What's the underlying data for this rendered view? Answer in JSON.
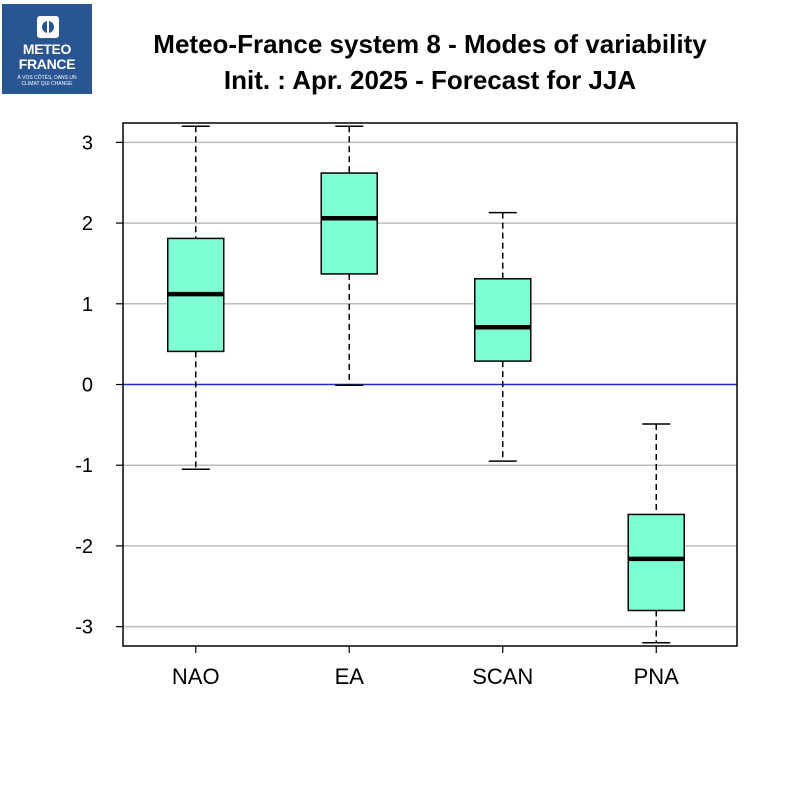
{
  "logo": {
    "line1": "METEO",
    "line2": "FRANCE",
    "tag1": "À VOS CÔTÉS, DANS UN",
    "tag2": "CLIMAT QUI CHANGE",
    "bg": "#2a5593"
  },
  "title": {
    "line1": "Meteo-France system 8 - Modes of variability",
    "line2": "Init. : Apr. 2025 - Forecast for JJA"
  },
  "chart_data": {
    "type": "box",
    "categories": [
      "NAO",
      "EA",
      "SCAN",
      "PNA"
    ],
    "boxes": [
      {
        "category": "NAO",
        "whisker_low": -1.05,
        "q1": 0.41,
        "median": 1.12,
        "q3": 1.81,
        "whisker_high": 3.2
      },
      {
        "category": "EA",
        "whisker_low": -0.01,
        "q1": 1.37,
        "median": 2.06,
        "q3": 2.62,
        "whisker_high": 3.2
      },
      {
        "category": "SCAN",
        "whisker_low": -0.95,
        "q1": 0.29,
        "median": 0.71,
        "q3": 1.31,
        "whisker_high": 2.13
      },
      {
        "category": "PNA",
        "whisker_low": -3.2,
        "q1": -2.8,
        "median": -2.16,
        "q3": -1.61,
        "whisker_high": -0.49
      }
    ],
    "yticks": [
      -3,
      -2,
      -1,
      0,
      1,
      2,
      3
    ],
    "ylim": [
      -3.24,
      3.24
    ],
    "grid": true,
    "reference_line": 0,
    "colors": {
      "box_fill": "#7fffd4",
      "reference": "#1f2fbf",
      "grid": "#bebebe",
      "whisker": "#000000"
    }
  }
}
